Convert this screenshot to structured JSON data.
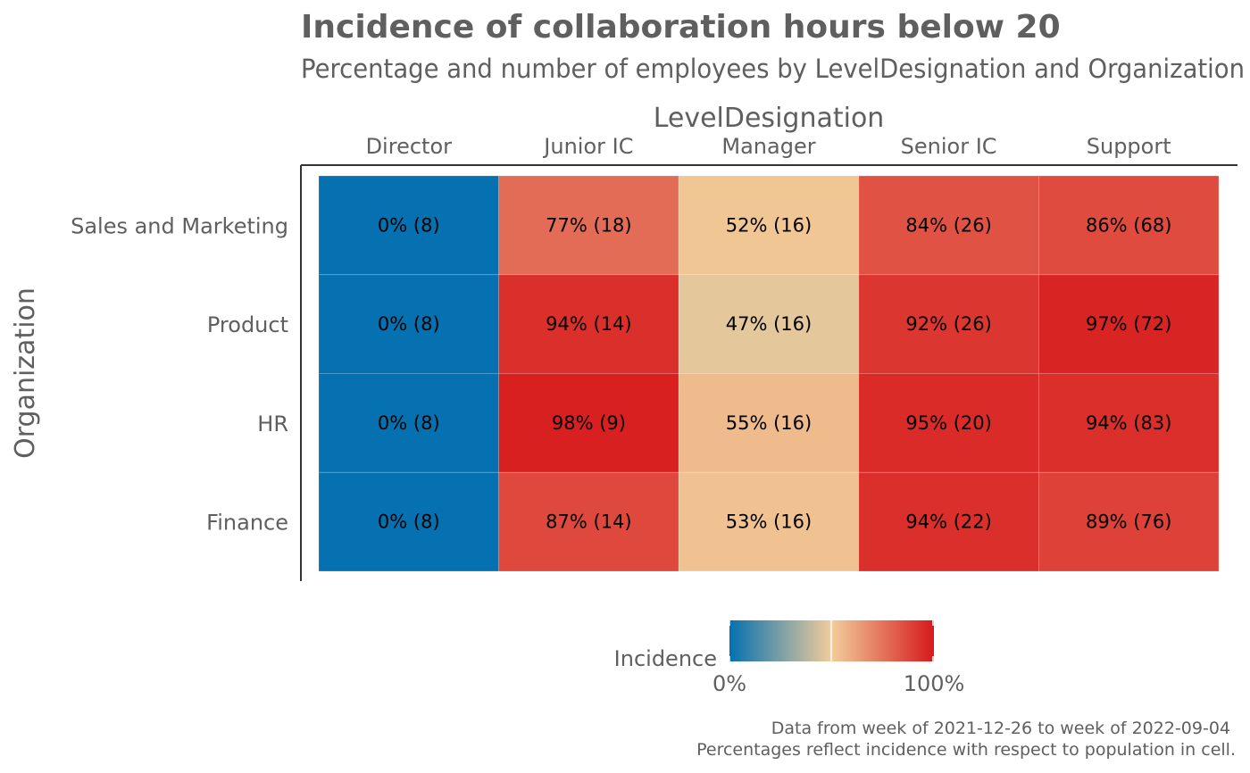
{
  "chart_data": {
    "type": "heatmap",
    "title": "Incidence of collaboration hours below 20",
    "subtitle": "Percentage and number of employees by LevelDesignation and Organization",
    "xlabel": "LevelDesignation",
    "ylabel": "Organization",
    "x_categories": [
      "Director",
      "Junior IC",
      "Manager",
      "Senior IC",
      "Support"
    ],
    "y_categories": [
      "Sales and Marketing",
      "Product",
      "HR",
      "Finance"
    ],
    "cells": [
      {
        "row": "Sales and Marketing",
        "col": "Director",
        "value": 0,
        "n": 8,
        "label": "0% (8)"
      },
      {
        "row": "Sales and Marketing",
        "col": "Junior IC",
        "value": 77,
        "n": 18,
        "label": "77% (18)"
      },
      {
        "row": "Sales and Marketing",
        "col": "Manager",
        "value": 52,
        "n": 16,
        "label": "52% (16)"
      },
      {
        "row": "Sales and Marketing",
        "col": "Senior IC",
        "value": 84,
        "n": 26,
        "label": "84% (26)"
      },
      {
        "row": "Sales and Marketing",
        "col": "Support",
        "value": 86,
        "n": 68,
        "label": "86% (68)"
      },
      {
        "row": "Product",
        "col": "Director",
        "value": 0,
        "n": 8,
        "label": "0% (8)"
      },
      {
        "row": "Product",
        "col": "Junior IC",
        "value": 94,
        "n": 14,
        "label": "94% (14)"
      },
      {
        "row": "Product",
        "col": "Manager",
        "value": 47,
        "n": 16,
        "label": "47% (16)"
      },
      {
        "row": "Product",
        "col": "Senior IC",
        "value": 92,
        "n": 26,
        "label": "92% (26)"
      },
      {
        "row": "Product",
        "col": "Support",
        "value": 97,
        "n": 72,
        "label": "97% (72)"
      },
      {
        "row": "HR",
        "col": "Director",
        "value": 0,
        "n": 8,
        "label": "0% (8)"
      },
      {
        "row": "HR",
        "col": "Junior IC",
        "value": 98,
        "n": 9,
        "label": "98% (9)"
      },
      {
        "row": "HR",
        "col": "Manager",
        "value": 55,
        "n": 16,
        "label": "55% (16)"
      },
      {
        "row": "HR",
        "col": "Senior IC",
        "value": 95,
        "n": 20,
        "label": "95% (20)"
      },
      {
        "row": "HR",
        "col": "Support",
        "value": 94,
        "n": 83,
        "label": "94% (83)"
      },
      {
        "row": "Finance",
        "col": "Director",
        "value": 0,
        "n": 8,
        "label": "0% (8)"
      },
      {
        "row": "Finance",
        "col": "Junior IC",
        "value": 87,
        "n": 14,
        "label": "87% (14)"
      },
      {
        "row": "Finance",
        "col": "Manager",
        "value": 53,
        "n": 16,
        "label": "53% (16)"
      },
      {
        "row": "Finance",
        "col": "Senior IC",
        "value": 94,
        "n": 22,
        "label": "94% (22)"
      },
      {
        "row": "Finance",
        "col": "Support",
        "value": 89,
        "n": 76,
        "label": "89% (76)"
      }
    ],
    "color_scale": {
      "low": "#0571b0",
      "mid": "#f2cd9a",
      "high": "#d7191c",
      "limits": [
        0,
        100
      ]
    },
    "legend": {
      "title": "Incidence",
      "tick_labels": [
        "0%",
        "100%"
      ],
      "placement": "bottom"
    },
    "caption": [
      "Data from week of 2021-12-26 to week of 2022-09-04",
      "Percentages reflect incidence with respect to population in cell."
    ]
  },
  "colors": {
    "text": "#5f5f5f",
    "axis_line": "#333333",
    "cell_text": "#000000"
  }
}
